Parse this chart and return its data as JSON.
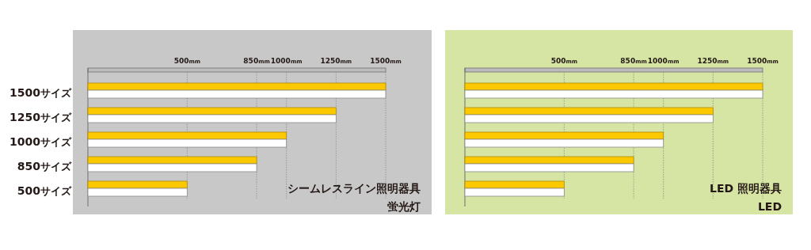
{
  "chart_data": [
    {
      "type": "bar",
      "orientation": "horizontal",
      "categories": [
        "1500サイズ",
        "1250サイズ",
        "1000サイズ",
        "850サイズ",
        "500サイズ"
      ],
      "series": [
        {
          "color": "#fcc800",
          "values": [
            1500,
            1250,
            1000,
            850,
            500
          ]
        },
        {
          "color": "#ffffff",
          "values": [
            1500,
            1250,
            1000,
            850,
            500
          ]
        }
      ],
      "xlim": [
        0,
        1500
      ],
      "xticks": [
        {
          "value": 500,
          "label": "500mm"
        },
        {
          "value": 850,
          "label": "850mm"
        },
        {
          "value": 1000,
          "label": "1000mm"
        },
        {
          "value": 1250,
          "label": "1250mm"
        },
        {
          "value": 1500,
          "label": "1500mm"
        }
      ],
      "grid": "x",
      "annotations": [
        "シームレスライン照明器具",
        "蛍光灯"
      ]
    },
    {
      "type": "bar",
      "orientation": "horizontal",
      "categories": [
        null,
        null,
        null,
        null,
        null
      ],
      "series": [
        {
          "color": "#fcc800",
          "values": [
            1500,
            1250,
            1000,
            850,
            500
          ]
        },
        {
          "color": "#ffffff",
          "values": [
            1500,
            1250,
            1000,
            850,
            500
          ]
        }
      ],
      "xlim": [
        0,
        1500
      ],
      "xticks": [
        {
          "value": 500,
          "label": "500mm"
        },
        {
          "value": 850,
          "label": "850mm"
        },
        {
          "value": 1000,
          "label": "1000mm"
        },
        {
          "value": 1250,
          "label": "1250mm"
        },
        {
          "value": 1500,
          "label": "1500mm"
        }
      ],
      "grid": "x",
      "tick_labels": "x",
      "annotations": [
        "LED 照明器具",
        "LED"
      ]
    }
  ]
}
